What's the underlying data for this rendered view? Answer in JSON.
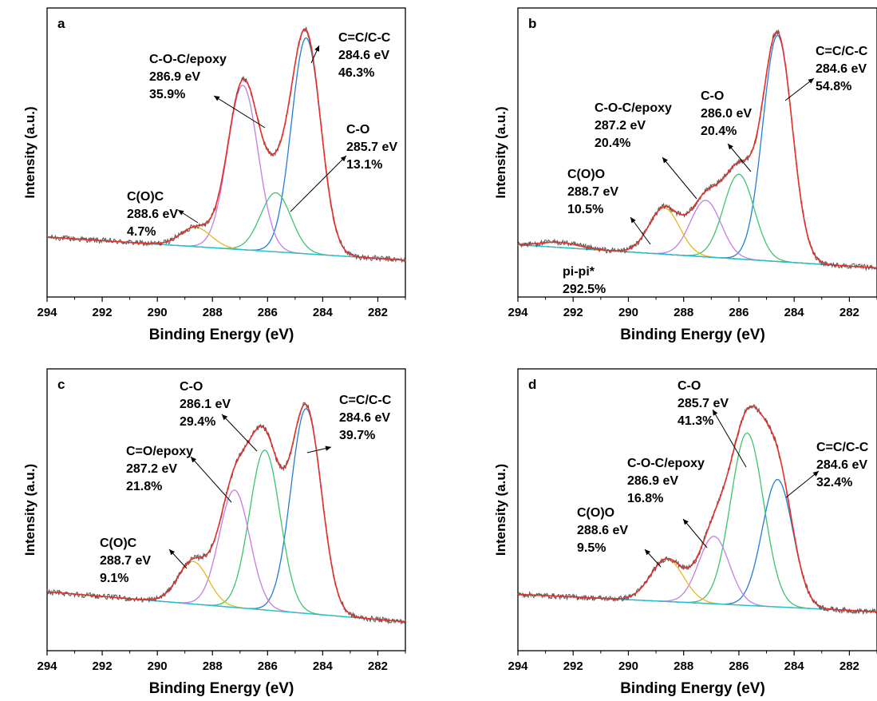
{
  "chart_data": [
    {
      "panel_label": "a",
      "type": "line",
      "xlabel": "Binding Energy (eV)",
      "ylabel": "Intensity (a.u.)",
      "xlim": [
        294,
        281
      ],
      "x_reversed": true,
      "xticks": [
        "294",
        "292",
        "290",
        "288",
        "286",
        "284",
        "282"
      ],
      "background": {
        "y_left": 0.14,
        "y_right": 0.05
      },
      "series": [
        {
          "name": "C=C/C-C",
          "center": 284.6,
          "height": 0.84,
          "fwhm": 1.25,
          "color": "#1f7ed6"
        },
        {
          "name": "C-O",
          "center": 285.7,
          "height": 0.23,
          "fwhm": 1.3,
          "color": "#3ec46d"
        },
        {
          "name": "C-O-C/epoxy",
          "center": 286.9,
          "height": 0.64,
          "fwhm": 1.3,
          "color": "#c27ee0"
        },
        {
          "name": "C(O)C",
          "center": 288.6,
          "height": 0.075,
          "fwhm": 1.3,
          "color": "#e8b820"
        }
      ],
      "annotations": [
        {
          "lines": [
            "C=C/C-C",
            "284.6 eV",
            "46.3%"
          ]
        },
        {
          "lines": [
            "C-O-C/epoxy",
            "286.9 eV",
            "35.9%"
          ]
        },
        {
          "lines": [
            "C-O",
            "285.7 eV",
            "13.1%"
          ]
        },
        {
          "lines": [
            "C(O)C",
            "288.6 eV",
            "4.7%"
          ]
        }
      ]
    },
    {
      "panel_label": "b",
      "type": "line",
      "xlabel": "Binding Energy (eV)",
      "ylabel": "Intensity (a.u.)",
      "xlim": [
        294,
        281
      ],
      "x_reversed": true,
      "xticks": [
        "294",
        "292",
        "290",
        "288",
        "286",
        "284",
        "282"
      ],
      "background": {
        "y_left": 0.11,
        "y_right": 0.02
      },
      "series": [
        {
          "name": "C=C/C-C",
          "center": 284.6,
          "height": 0.88,
          "fwhm": 1.25,
          "color": "#1f7ed6"
        },
        {
          "name": "C-O",
          "center": 286.0,
          "height": 0.33,
          "fwhm": 1.3,
          "color": "#3ec46d"
        },
        {
          "name": "C-O-C/epoxy",
          "center": 287.2,
          "height": 0.22,
          "fwhm": 1.3,
          "color": "#c27ee0"
        },
        {
          "name": "C(O)O",
          "center": 288.7,
          "height": 0.18,
          "fwhm": 1.3,
          "color": "#e8b820"
        },
        {
          "name": "pi-pi*",
          "center": 292.5,
          "height": 0.02,
          "fwhm": 1.6,
          "color": "#8c5a3c"
        }
      ],
      "annotations": [
        {
          "lines": [
            "C=C/C-C",
            "284.6 eV",
            "54.8%"
          ]
        },
        {
          "lines": [
            "C-O",
            "286.0 eV",
            "20.4%"
          ]
        },
        {
          "lines": [
            "C-O-C/epoxy",
            "287.2 eV",
            "20.4%"
          ]
        },
        {
          "lines": [
            "C(O)O",
            "288.7 eV",
            "10.5%"
          ]
        },
        {
          "lines": [
            "pi-pi*",
            "292.5%"
          ]
        }
      ]
    },
    {
      "panel_label": "c",
      "type": "line",
      "xlabel": "Binding Energy (eV)",
      "ylabel": "Intensity (a.u.)",
      "xlim": [
        294,
        281
      ],
      "x_reversed": true,
      "xticks": [
        "294",
        "292",
        "290",
        "288",
        "286",
        "284",
        "282"
      ],
      "background": {
        "y_left": 0.14,
        "y_right": 0.02
      },
      "series": [
        {
          "name": "C=C/C-C",
          "center": 284.6,
          "height": 0.82,
          "fwhm": 1.3,
          "color": "#1f7ed6"
        },
        {
          "name": "C-O",
          "center": 286.1,
          "height": 0.64,
          "fwhm": 1.3,
          "color": "#3ec46d"
        },
        {
          "name": "C=O/epoxy",
          "center": 287.2,
          "height": 0.47,
          "fwhm": 1.3,
          "color": "#c27ee0"
        },
        {
          "name": "C(O)C",
          "center": 288.7,
          "height": 0.17,
          "fwhm": 1.3,
          "color": "#e8b820"
        }
      ],
      "annotations": [
        {
          "lines": [
            "C=C/C-C",
            "284.6 eV",
            "39.7%"
          ]
        },
        {
          "lines": [
            "C-O",
            "286.1 eV",
            "29.4%"
          ]
        },
        {
          "lines": [
            "C=O/epoxy",
            "287.2 eV",
            "21.8%"
          ]
        },
        {
          "lines": [
            "C(O)C",
            "288.7 eV",
            "9.1%"
          ]
        }
      ]
    },
    {
      "panel_label": "d",
      "type": "line",
      "xlabel": "Binding Energy (eV)",
      "ylabel": "Intensity (a.u.)",
      "xlim": [
        294,
        281
      ],
      "x_reversed": true,
      "xticks": [
        "294",
        "292",
        "290",
        "288",
        "286",
        "284",
        "282"
      ],
      "background": {
        "y_left": 0.13,
        "y_right": 0.06
      },
      "series": [
        {
          "name": "C=C/C-C",
          "center": 284.6,
          "height": 0.51,
          "fwhm": 1.3,
          "color": "#1f7ed6"
        },
        {
          "name": "C-O",
          "center": 285.7,
          "height": 0.69,
          "fwhm": 1.4,
          "color": "#3ec46d"
        },
        {
          "name": "C-O-C/epoxy",
          "center": 286.9,
          "height": 0.27,
          "fwhm": 1.3,
          "color": "#c27ee0"
        },
        {
          "name": "C(O)O",
          "center": 288.6,
          "height": 0.17,
          "fwhm": 1.4,
          "color": "#e8b820"
        }
      ],
      "annotations": [
        {
          "lines": [
            "C-O",
            "285.7 eV",
            "41.3%"
          ]
        },
        {
          "lines": [
            "C=C/C-C",
            "284.6 eV",
            "32.4%"
          ]
        },
        {
          "lines": [
            "C-O-C/epoxy",
            "286.9 eV",
            "16.8%"
          ]
        },
        {
          "lines": [
            "C(O)O",
            "288.6 eV",
            "9.5%"
          ]
        }
      ]
    }
  ],
  "colors": {
    "envelope": "#e8302a",
    "raw": "#555555",
    "baseline": "#21c2d6"
  }
}
